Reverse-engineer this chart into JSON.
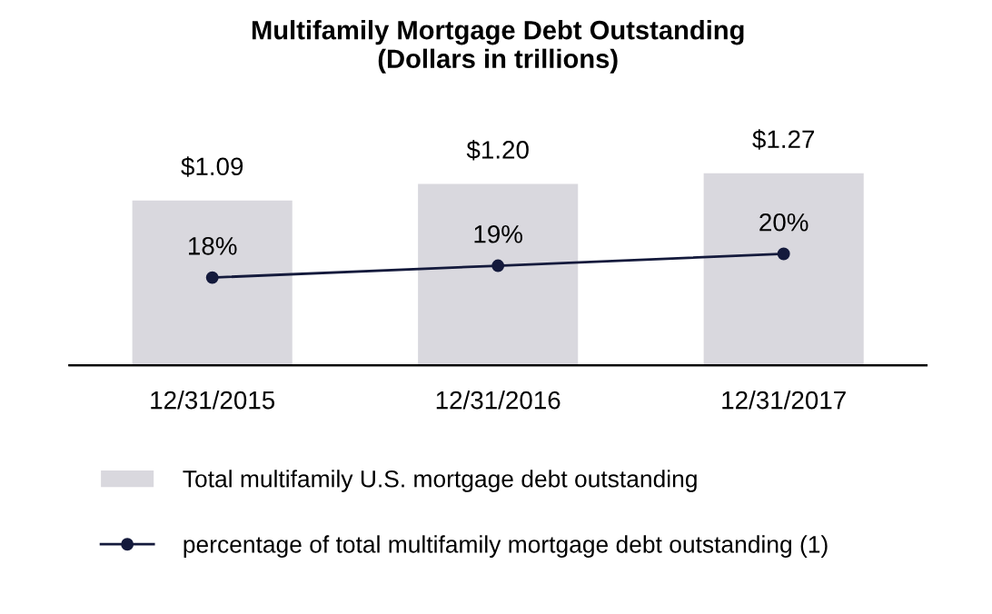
{
  "chart_data": {
    "type": "bar",
    "title": "Multifamily Mortgage Debt Outstanding\n(Dollars in trillions)",
    "categories": [
      "12/31/2015",
      "12/31/2016",
      "12/31/2017"
    ],
    "series": [
      {
        "name": "Total multifamily U.S. mortgage debt outstanding",
        "color": "#d9d8de",
        "values": [
          1.09,
          1.2,
          1.27
        ],
        "value_labels": [
          "$1.09",
          "$1.20",
          "$1.27"
        ]
      },
      {
        "name": "percentage of total multifamily mortgage debt outstanding (1)",
        "type": "line",
        "axis": "y2",
        "color": "#141a3c",
        "marker": "circle",
        "values": [
          18,
          19,
          20
        ],
        "value_labels": [
          "18%",
          "19%",
          "20%"
        ]
      }
    ],
    "tick_labels": "x",
    "legend": "bottom",
    "grid": false
  }
}
